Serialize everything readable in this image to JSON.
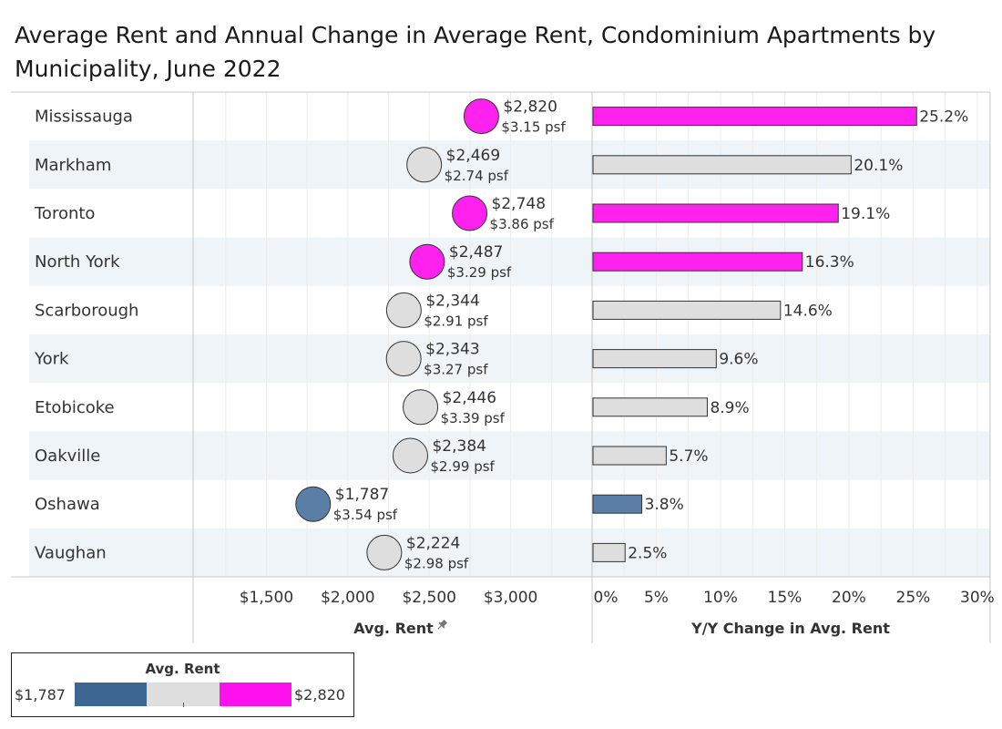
{
  "title": "Average Rent and Annual Change in Average Rent, Condominium Apartments by Municipality, June 2022",
  "chart_data": {
    "type": "bar",
    "categories": [
      "Mississauga",
      "Markham",
      "Toronto",
      "North York",
      "Scarborough",
      "York",
      "Etobicoke",
      "Oakville",
      "Oshawa",
      "Vaughan"
    ],
    "avg_rent": {
      "xlabel": "Avg. Rent",
      "xlim": [
        1050,
        3500
      ],
      "ticks": [
        1500,
        2000,
        2500,
        3000
      ],
      "tick_labels": [
        "$1,500",
        "$2,000",
        "$2,500",
        "$3,000"
      ],
      "values": [
        2820,
        2469,
        2748,
        2487,
        2344,
        2343,
        2446,
        2384,
        1787,
        2224
      ],
      "labels": [
        "$2,820",
        "$2,469",
        "$2,748",
        "$2,487",
        "$2,344",
        "$2,343",
        "$2,446",
        "$2,384",
        "$1,787",
        "$2,224"
      ],
      "psf_labels": [
        "$3.15 psf",
        "$2.74 psf",
        "$3.86 psf",
        "$3.29 psf",
        "$2.91 psf",
        "$3.27 psf",
        "$3.39 psf",
        "$2.99 psf",
        "$3.54 psf",
        "$2.98 psf"
      ]
    },
    "yy_change": {
      "xlabel": "Y/Y Change in Avg. Rent",
      "xlim": [
        0,
        31
      ],
      "ticks": [
        0,
        5,
        10,
        15,
        20,
        25,
        30
      ],
      "tick_labels": [
        "0%",
        "5%",
        "10%",
        "15%",
        "20%",
        "25%",
        "30%"
      ],
      "values": [
        25.2,
        20.1,
        19.1,
        16.3,
        14.6,
        9.6,
        8.9,
        5.7,
        3.8,
        2.5
      ],
      "labels": [
        "25.2%",
        "20.1%",
        "19.1%",
        "16.3%",
        "14.6%",
        "9.6%",
        "8.9%",
        "5.7%",
        "3.8%",
        "2.5%"
      ]
    },
    "color_category": [
      "high",
      "mid",
      "high",
      "high",
      "mid",
      "mid",
      "mid",
      "mid",
      "low",
      "mid"
    ],
    "colors": {
      "low": "#5b7ea6",
      "mid": "#dedede",
      "high": "#ff22ee",
      "band": "#eef4f8"
    },
    "legend": {
      "title": "Avg. Rent",
      "min_label": "$1,787",
      "max_label": "$2,820",
      "colors": [
        "#3d6690",
        "#dedede",
        "#ff11ee"
      ]
    },
    "grid": true
  }
}
